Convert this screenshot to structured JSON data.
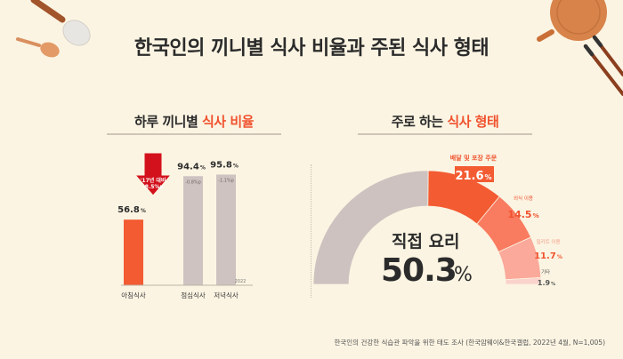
{
  "page": {
    "title": "한국인의 끼니별 식사 비율과 주된 식사 형태",
    "footnote": "한국인의 건강한 식습관 파악을 위한 태도 조사 (한국암웨이&한국갤럽, 2022년 4월, N=1,005)"
  },
  "left_section": {
    "title_plain": "하루 끼니별 ",
    "title_highlight": "식사 비율",
    "year_label": "2022",
    "arrow_lines": [
      "'17년 대비",
      "-8.5%p"
    ]
  },
  "right_section": {
    "title_plain": "주로 하는 ",
    "title_highlight": "식사 형태",
    "center_label": "직접 요리",
    "center_value": "50.3",
    "center_unit": "%"
  },
  "chart_data": [
    {
      "type": "bar",
      "title": "하루 끼니별 식사 비율",
      "categories": [
        "아침식사",
        "점심식사",
        "저녁식사"
      ],
      "values": [
        56.8,
        94.4,
        95.8
      ],
      "unit": "%",
      "change_labels": [
        "-8.5%p",
        "-0.8%p",
        "-1.1%p"
      ],
      "colors": [
        "#f35b32",
        "#cec3c0",
        "#cec3c0"
      ],
      "ylim": [
        0,
        100
      ]
    },
    {
      "type": "pie",
      "title": "주로 하는 식사 형태",
      "style": "semi-donut",
      "categories": [
        "직접 요리",
        "배달 및 포장 주문",
        "외식 이용",
        "밀키트 이용",
        "기타"
      ],
      "values": [
        50.3,
        21.6,
        14.5,
        11.7,
        1.9
      ],
      "unit": "%",
      "colors": [
        "#cdc2bf",
        "#f35b32",
        "#f97b60",
        "#fba99a",
        "#fad3cc"
      ]
    }
  ],
  "colors": {
    "background": "#fbf4e2",
    "accent": "#f0522e",
    "arrow": "#d3111c",
    "bar_gray": "#cec3c0"
  },
  "decorations": [
    "spoon-icon",
    "ladle-icon",
    "cutting-board-icon",
    "chopsticks-icon"
  ]
}
